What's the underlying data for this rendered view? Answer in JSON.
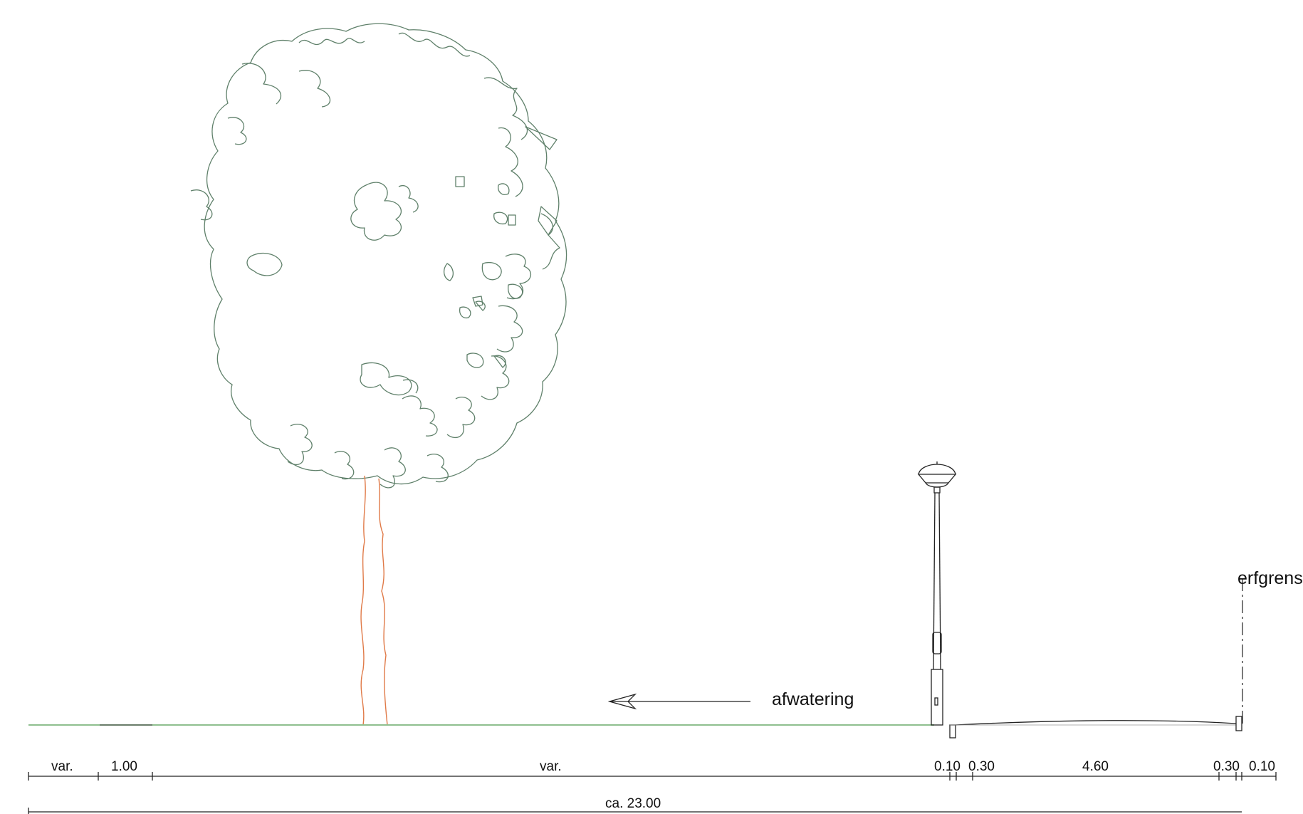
{
  "labels": {
    "drainage": "afwatering",
    "property_boundary": "erfgrens"
  },
  "dimensions": {
    "segments": [
      "var.",
      "1.00",
      "var.",
      "0.10",
      "0.30",
      "4.60",
      "0.30",
      "0.10"
    ],
    "total": "ca. 23.00"
  },
  "colors": {
    "foliage": "#5f806a",
    "trunk": "#e07a48",
    "ground": "#8fbf8f",
    "ink": "#222222"
  }
}
